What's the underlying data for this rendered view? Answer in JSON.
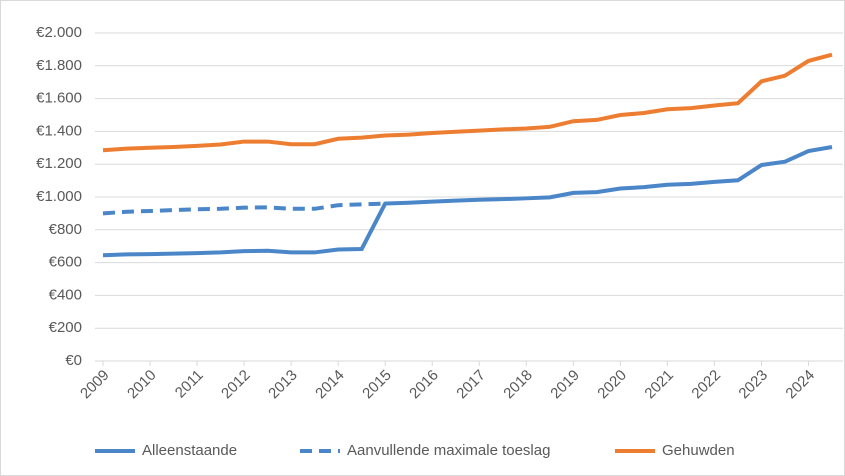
{
  "chart_data": {
    "type": "line",
    "x": [
      2009,
      2009.5,
      2010,
      2010.5,
      2011,
      2011.5,
      2012,
      2012.5,
      2013,
      2013.5,
      2014,
      2014.5,
      2015,
      2015.5,
      2016,
      2016.5,
      2017,
      2017.5,
      2018,
      2018.5,
      2019,
      2019.5,
      2020,
      2020.5,
      2021,
      2021.5,
      2022,
      2022.5,
      2023,
      2023.5,
      2024,
      2024.5
    ],
    "series": [
      {
        "name": "Alleenstaande",
        "color": "#4a86c8",
        "dash": false,
        "values": [
          645,
          650,
          652,
          655,
          658,
          662,
          670,
          672,
          662,
          662,
          680,
          683,
          960,
          965,
          972,
          978,
          983,
          987,
          992,
          998,
          1025,
          1030,
          1052,
          1060,
          1075,
          1080,
          1092,
          1102,
          1195,
          1215,
          1280,
          1305
        ]
      },
      {
        "name": "Aanvullende maximale toeslag",
        "color": "#4a86c8",
        "dash": true,
        "values": [
          900,
          910,
          915,
          920,
          925,
          928,
          935,
          937,
          928,
          928,
          950,
          955,
          960,
          null,
          null,
          null,
          null,
          null,
          null,
          null,
          null,
          null,
          null,
          null,
          null,
          null,
          null,
          null,
          null,
          null,
          null,
          null
        ]
      },
      {
        "name": "Gehuwden",
        "color": "#ed7d31",
        "dash": false,
        "values": [
          1285,
          1295,
          1300,
          1305,
          1312,
          1320,
          1338,
          1338,
          1322,
          1322,
          1355,
          1362,
          1375,
          1380,
          1390,
          1398,
          1405,
          1412,
          1418,
          1428,
          1462,
          1470,
          1500,
          1512,
          1535,
          1542,
          1558,
          1572,
          1705,
          1740,
          1830,
          1868
        ]
      }
    ],
    "xlim": [
      2009,
      2024.5
    ],
    "xticks": [
      2009,
      2010,
      2011,
      2012,
      2013,
      2014,
      2015,
      2016,
      2017,
      2018,
      2019,
      2020,
      2021,
      2022,
      2023,
      2024
    ],
    "ylim": [
      0,
      2000
    ],
    "yticks": [
      {
        "value": 0,
        "label": "€0"
      },
      {
        "value": 200,
        "label": "€200"
      },
      {
        "value": 400,
        "label": "€400"
      },
      {
        "value": 600,
        "label": "€600"
      },
      {
        "value": 800,
        "label": "€800"
      },
      {
        "value": 1000,
        "label": "€1.000"
      },
      {
        "value": 1200,
        "label": "€1.200"
      },
      {
        "value": 1400,
        "label": "€1.400"
      },
      {
        "value": 1600,
        "label": "€1.600"
      },
      {
        "value": 1800,
        "label": "€1.800"
      },
      {
        "value": 2000,
        "label": "€2.000"
      }
    ],
    "grid": true,
    "legend": "bottom"
  }
}
